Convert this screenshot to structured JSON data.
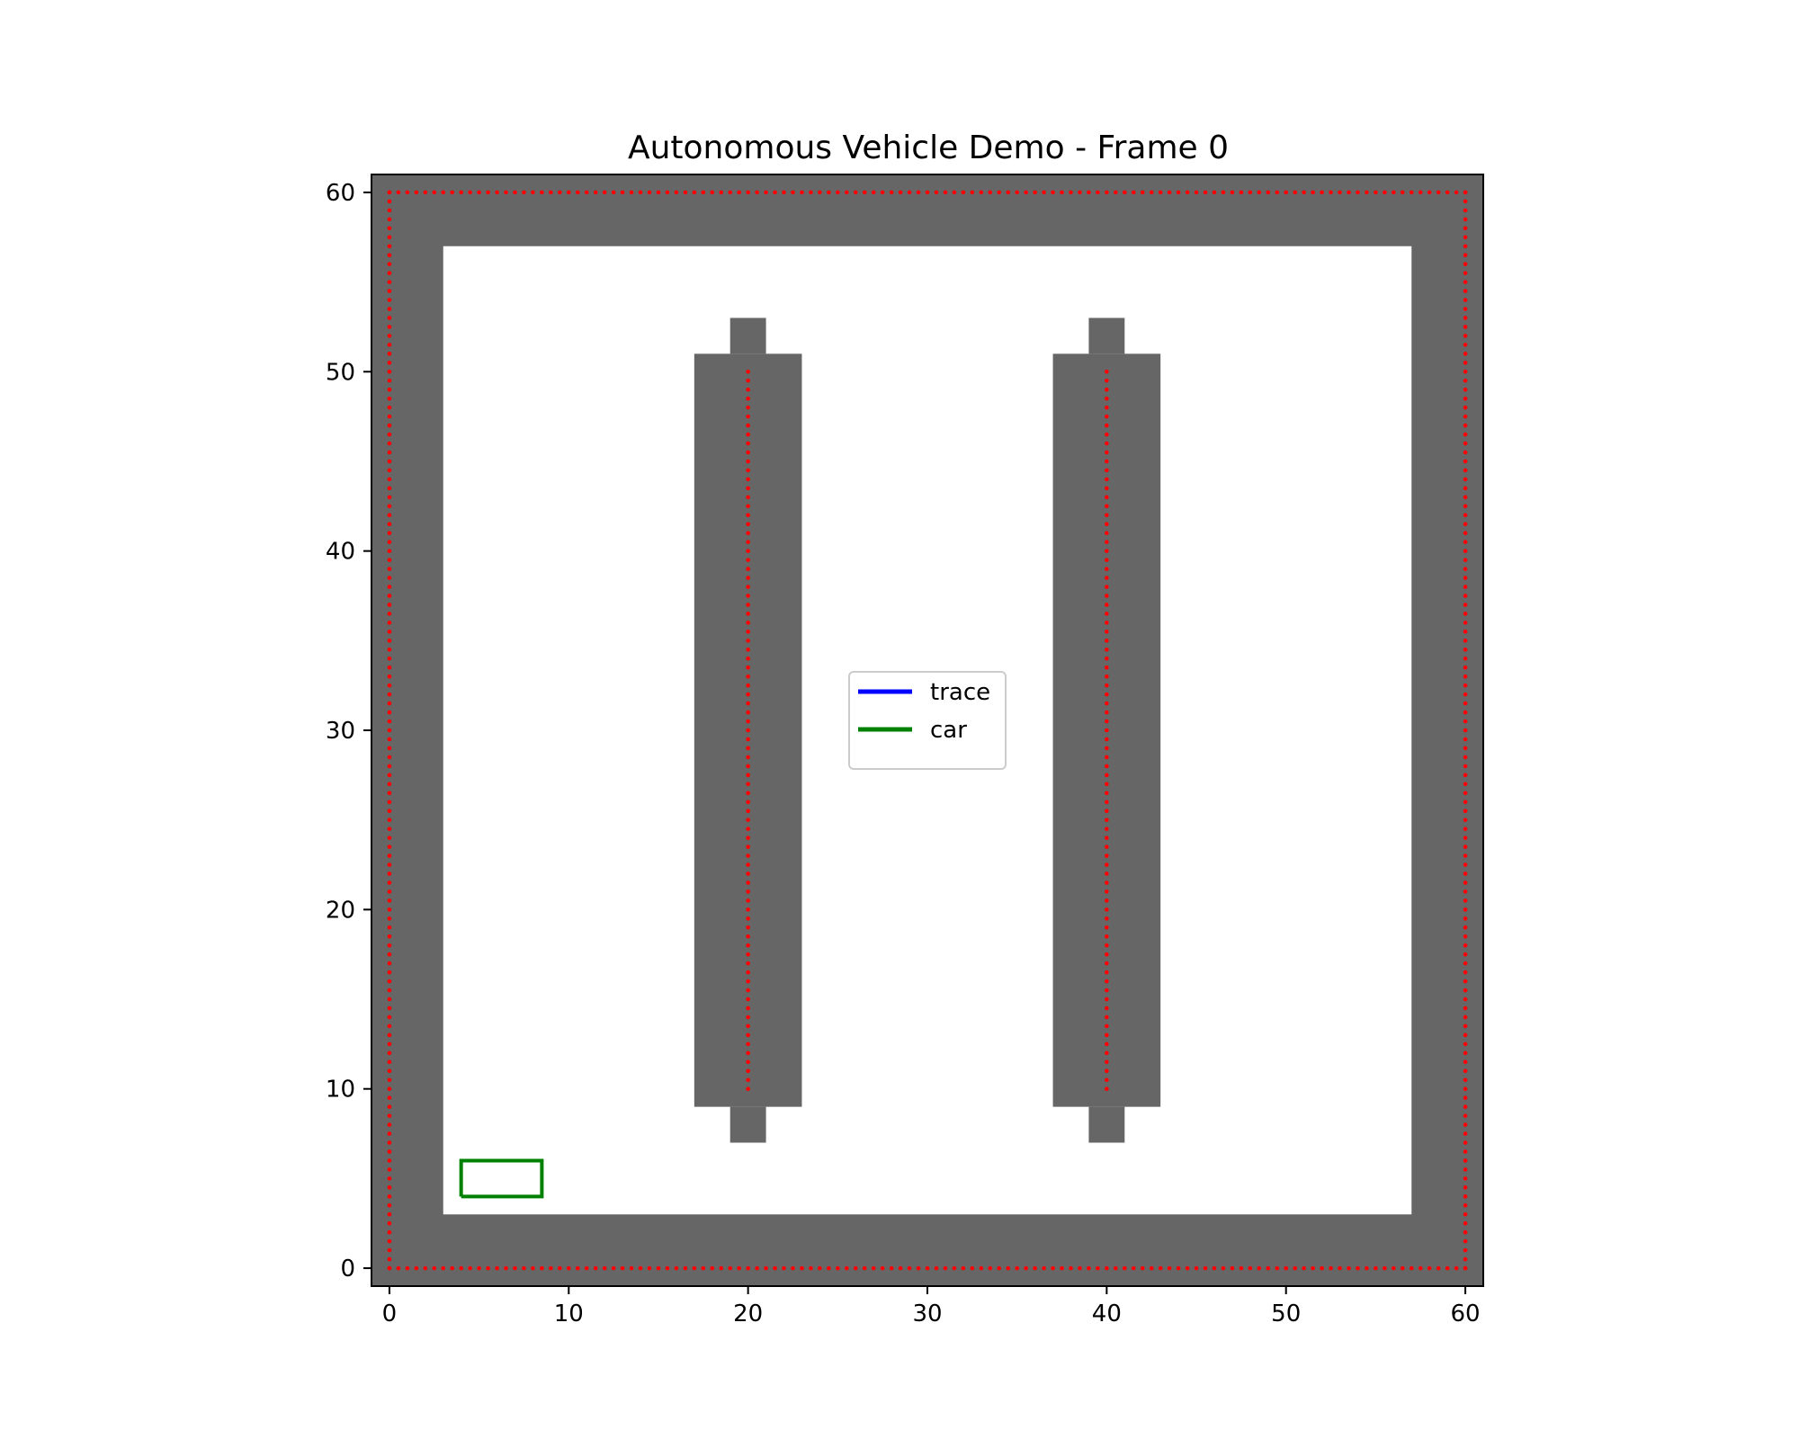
{
  "chart_data": {
    "type": "scatter",
    "title": "Autonomous Vehicle Demo - Frame 0",
    "xlabel": "",
    "ylabel": "",
    "xlim": [
      -1,
      61
    ],
    "ylim": [
      -1,
      61
    ],
    "x_ticks": [
      0,
      10,
      20,
      30,
      40,
      50,
      60
    ],
    "y_ticks": [
      0,
      10,
      20,
      30,
      40,
      50,
      60
    ],
    "x_tick_labels": [
      "0",
      "10",
      "20",
      "30",
      "40",
      "50",
      "60"
    ],
    "y_tick_labels": [
      "0",
      "10",
      "20",
      "30",
      "40",
      "50",
      "60"
    ],
    "grid": false,
    "aspect": "equal",
    "background_color": "#666666",
    "free_space_color": "#ffffff",
    "free_space": [
      {
        "x0": 3,
        "y0": 3,
        "x1": 57,
        "y1": 57
      }
    ],
    "obstacles": [
      {
        "x0": 17,
        "y0": 9,
        "x1": 23,
        "y1": 51
      },
      {
        "x0": 19,
        "y0": 7,
        "x1": 21,
        "y1": 9
      },
      {
        "x0": 19,
        "y0": 51,
        "x1": 21,
        "y1": 53
      },
      {
        "x0": 37,
        "y0": 9,
        "x1": 43,
        "y1": 51
      },
      {
        "x0": 39,
        "y0": 7,
        "x1": 41,
        "y1": 9
      },
      {
        "x0": 39,
        "y0": 51,
        "x1": 41,
        "y1": 53
      }
    ],
    "obstacle_color": "#666666",
    "boundary_points": {
      "color": "#ff0000",
      "spacing": 0.5,
      "segments": [
        {
          "x0": 0,
          "y0": 0,
          "x1": 60,
          "y1": 0
        },
        {
          "x0": 60,
          "y0": 0,
          "x1": 60,
          "y1": 60
        },
        {
          "x0": 60,
          "y0": 60,
          "x1": 0,
          "y1": 60
        },
        {
          "x0": 0,
          "y0": 60,
          "x1": 0,
          "y1": 0
        },
        {
          "x0": 20,
          "y0": 10,
          "x1": 20,
          "y1": 50
        },
        {
          "x0": 40,
          "y0": 10,
          "x1": 40,
          "y1": 50
        }
      ]
    },
    "series": [
      {
        "name": "trace",
        "color": "#0000ff",
        "x": [],
        "y": []
      },
      {
        "name": "car",
        "color": "#008000",
        "x": [
          4,
          8.5,
          8.5,
          4,
          4
        ],
        "y": [
          4,
          4,
          6,
          6,
          4
        ]
      }
    ],
    "legend": {
      "position": "center",
      "entries": [
        "trace",
        "car"
      ]
    }
  }
}
